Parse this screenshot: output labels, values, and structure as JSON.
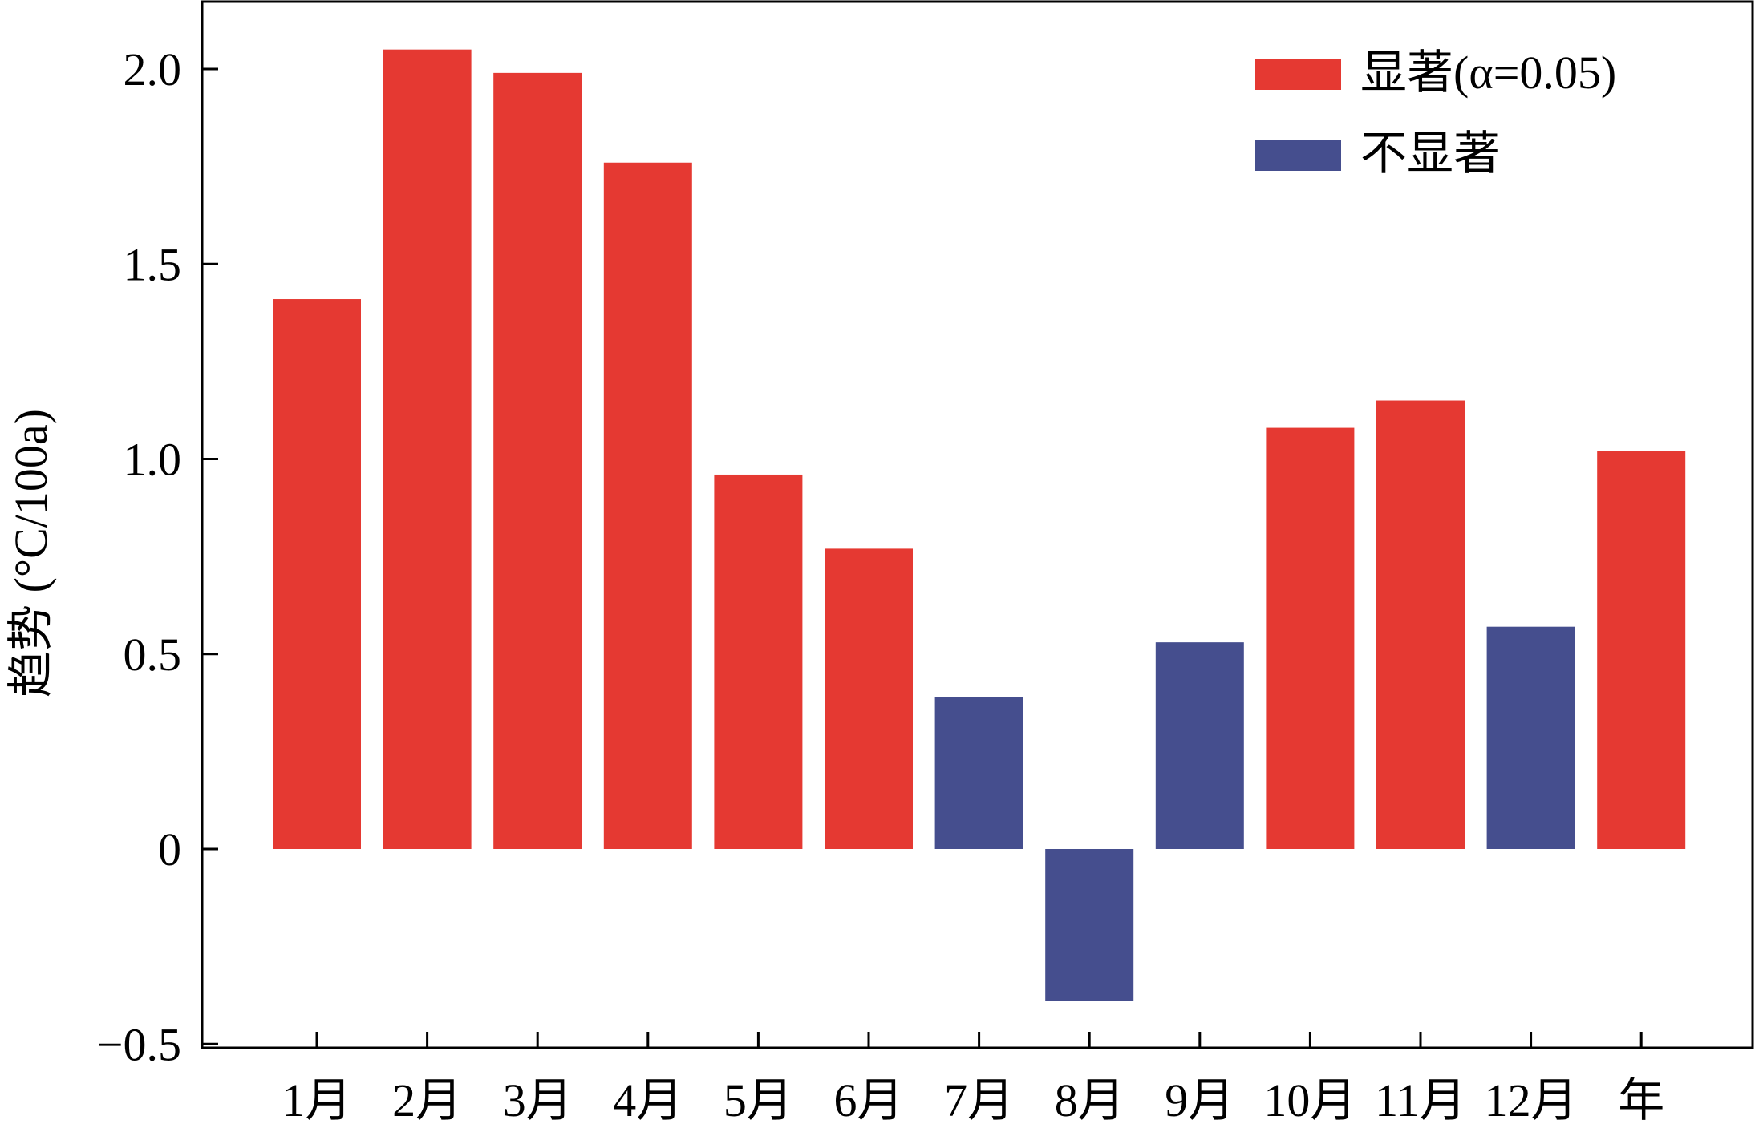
{
  "chart_data": {
    "type": "bar",
    "title": "",
    "xlabel": "",
    "ylabel": "趋势 (°C/100a)",
    "ylim": [
      -0.5,
      2.2
    ],
    "yticks": [
      2.0,
      1.5,
      1.0,
      0.5,
      0,
      -0.5
    ],
    "ytick_labels": [
      "2.0",
      "1.5",
      "1.0",
      "0.5",
      "0",
      "−0.5"
    ],
    "categories": [
      "1月",
      "2月",
      "3月",
      "4月",
      "5月",
      "6月",
      "7月",
      "8月",
      "9月",
      "10月",
      "11月",
      "12月",
      "年"
    ],
    "values": [
      1.41,
      2.05,
      1.99,
      1.76,
      0.96,
      0.77,
      0.39,
      -0.39,
      0.53,
      1.08,
      1.15,
      0.57,
      1.02
    ],
    "significant": [
      true,
      true,
      true,
      true,
      true,
      true,
      false,
      false,
      false,
      true,
      true,
      false,
      true
    ],
    "colors": {
      "significant": "#e53932",
      "not_significant": "#454e8e"
    },
    "legend": {
      "placement": "top-right",
      "entries": [
        {
          "label": "显著(α=0.05)",
          "color": "#e53932"
        },
        {
          "label": "不显著",
          "color": "#454e8e"
        }
      ]
    },
    "grid": false
  }
}
